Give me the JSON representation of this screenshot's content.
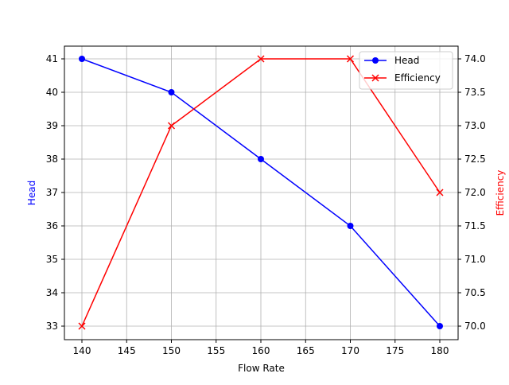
{
  "chart_data": {
    "type": "line",
    "title": "",
    "xlabel": "Flow Rate",
    "ylabel_left": "Head",
    "ylabel_right": "Efficiency",
    "x": [
      140,
      150,
      160,
      170,
      180
    ],
    "series": [
      {
        "name": "Head",
        "axis": "left",
        "color": "#0000ff",
        "marker": "o",
        "values": [
          41,
          40,
          38,
          36,
          33
        ]
      },
      {
        "name": "Efficiency",
        "axis": "right",
        "color": "#ff0000",
        "marker": "x",
        "values": [
          70.0,
          73.0,
          74.0,
          74.0,
          72.0
        ]
      }
    ],
    "xlim": [
      138,
      182
    ],
    "ylim_left": [
      32.6,
      41.4
    ],
    "ylim_right": [
      69.8,
      74.2
    ],
    "x_ticks": [
      "140",
      "145",
      "150",
      "155",
      "160",
      "165",
      "170",
      "175",
      "180"
    ],
    "y_left_ticks": [
      "33",
      "34",
      "35",
      "36",
      "37",
      "38",
      "39",
      "40",
      "41"
    ],
    "y_right_ticks": [
      "70.0",
      "70.5",
      "71.0",
      "71.5",
      "72.0",
      "72.5",
      "73.0",
      "73.5",
      "74.0"
    ],
    "grid": true,
    "legend_position": "upper right"
  },
  "legend": {
    "items": [
      "Head",
      "Efficiency"
    ]
  }
}
